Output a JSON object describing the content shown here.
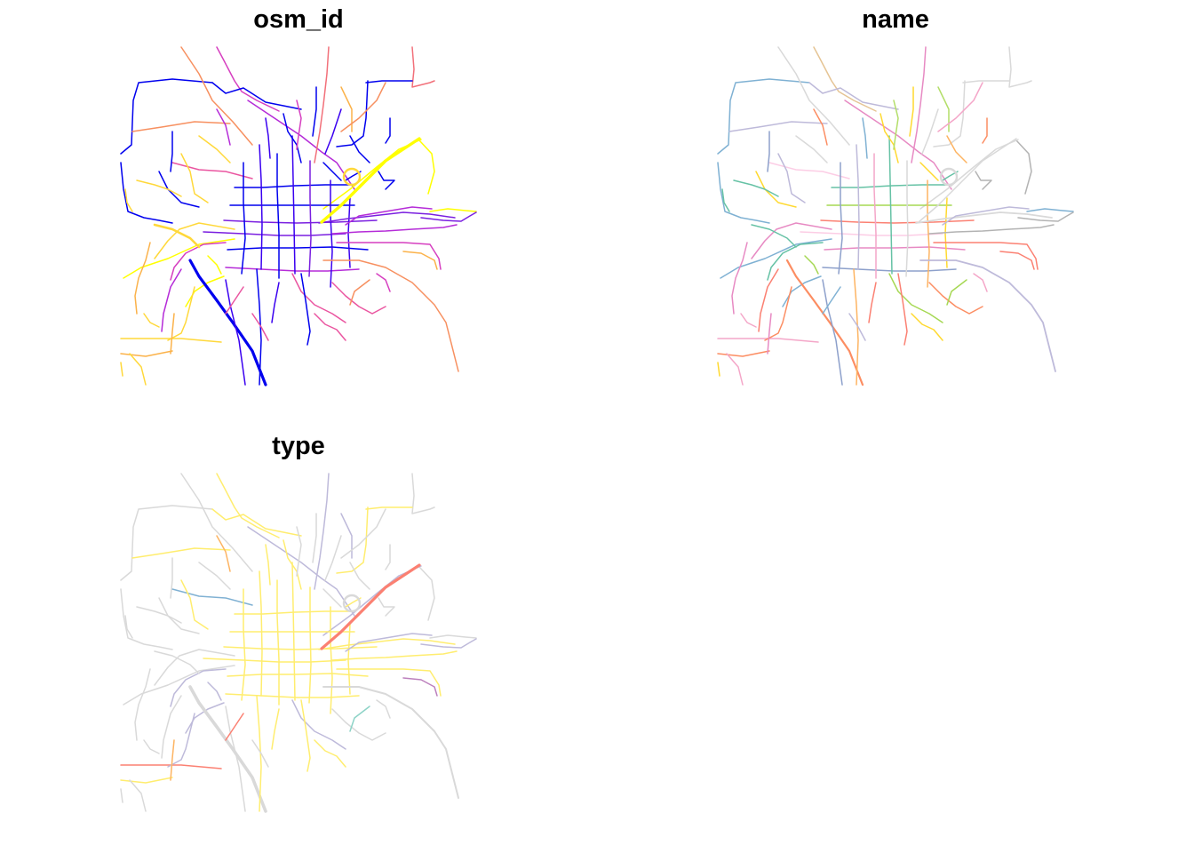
{
  "panels": [
    {
      "key": "osm_id",
      "title": "osm_id",
      "palette": [
        "#0000ee",
        "#3a00f0",
        "#7a1fe0",
        "#b52cd8",
        "#d63fc0",
        "#ea55a0",
        "#f2707a",
        "#f79060",
        "#fbb24a",
        "#ffd83a",
        "#ffff00"
      ]
    },
    {
      "key": "name",
      "title": "name",
      "palette": [
        "#66c2a5",
        "#fc8d62",
        "#8da0cb",
        "#e78ac3",
        "#a6d854",
        "#ffd92f",
        "#e5c494",
        "#b3b3b3",
        "#7fb1d3",
        "#f4a6c8",
        "#fb8072",
        "#bebada",
        "#d9d9d9",
        "#fdb462",
        "#b3de69",
        "#fccde5"
      ]
    },
    {
      "key": "type",
      "title": "type",
      "palette": [
        "#ffed6f",
        "#d9d9d9",
        "#bebada",
        "#fb8072",
        "#80b1d3",
        "#fdb462",
        "#8dd3c7",
        "#b3de69",
        "#bc80bd"
      ]
    }
  ]
}
